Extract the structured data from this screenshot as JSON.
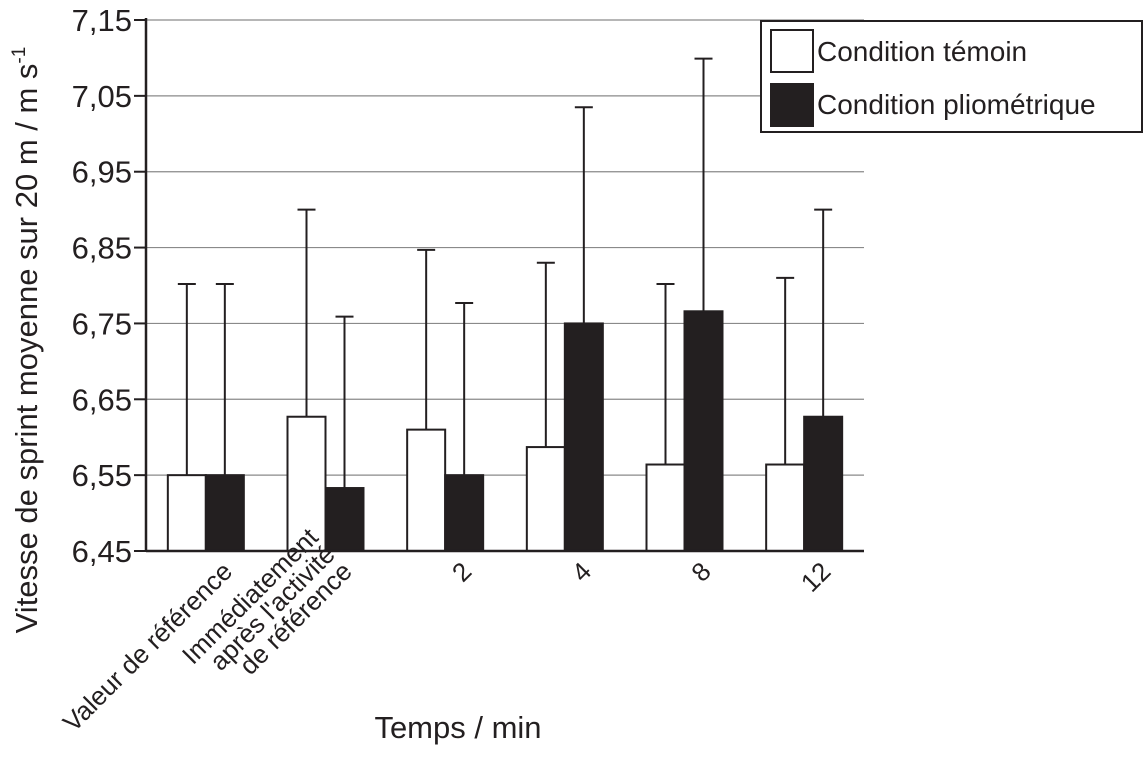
{
  "chart_data": {
    "type": "bar",
    "categories": [
      [
        "Valeur de référence"
      ],
      [
        "Immédiatement",
        "après l'activité",
        "de référence"
      ],
      [
        "2"
      ],
      [
        "4"
      ],
      [
        "8"
      ],
      [
        "12"
      ]
    ],
    "series": [
      {
        "name": "Condition témoin",
        "color": "#ffffff",
        "values": [
          6.55,
          6.627,
          6.61,
          6.587,
          6.564,
          6.564
        ],
        "error_upper": [
          6.802,
          6.9,
          6.847,
          6.83,
          6.802,
          6.81
        ]
      },
      {
        "name": "Condition pliométrique",
        "color": "#231f20",
        "values": [
          6.55,
          6.533,
          6.55,
          6.75,
          6.766,
          6.627
        ],
        "error_upper": [
          6.802,
          6.759,
          6.777,
          7.035,
          7.099,
          6.9
        ]
      }
    ],
    "xlabel": "Temps / min",
    "ylabel": {
      "main": "Vitesse de sprint moyenne sur  20 m / m s",
      "superscript": "-1"
    },
    "ylim": [
      6.45,
      7.15
    ],
    "yticks": [
      "6,45",
      "6,55",
      "6,65",
      "6,75",
      "6,85",
      "6,95",
      "7,05",
      "7,15"
    ],
    "grid": true,
    "legend_position": "top-right"
  }
}
